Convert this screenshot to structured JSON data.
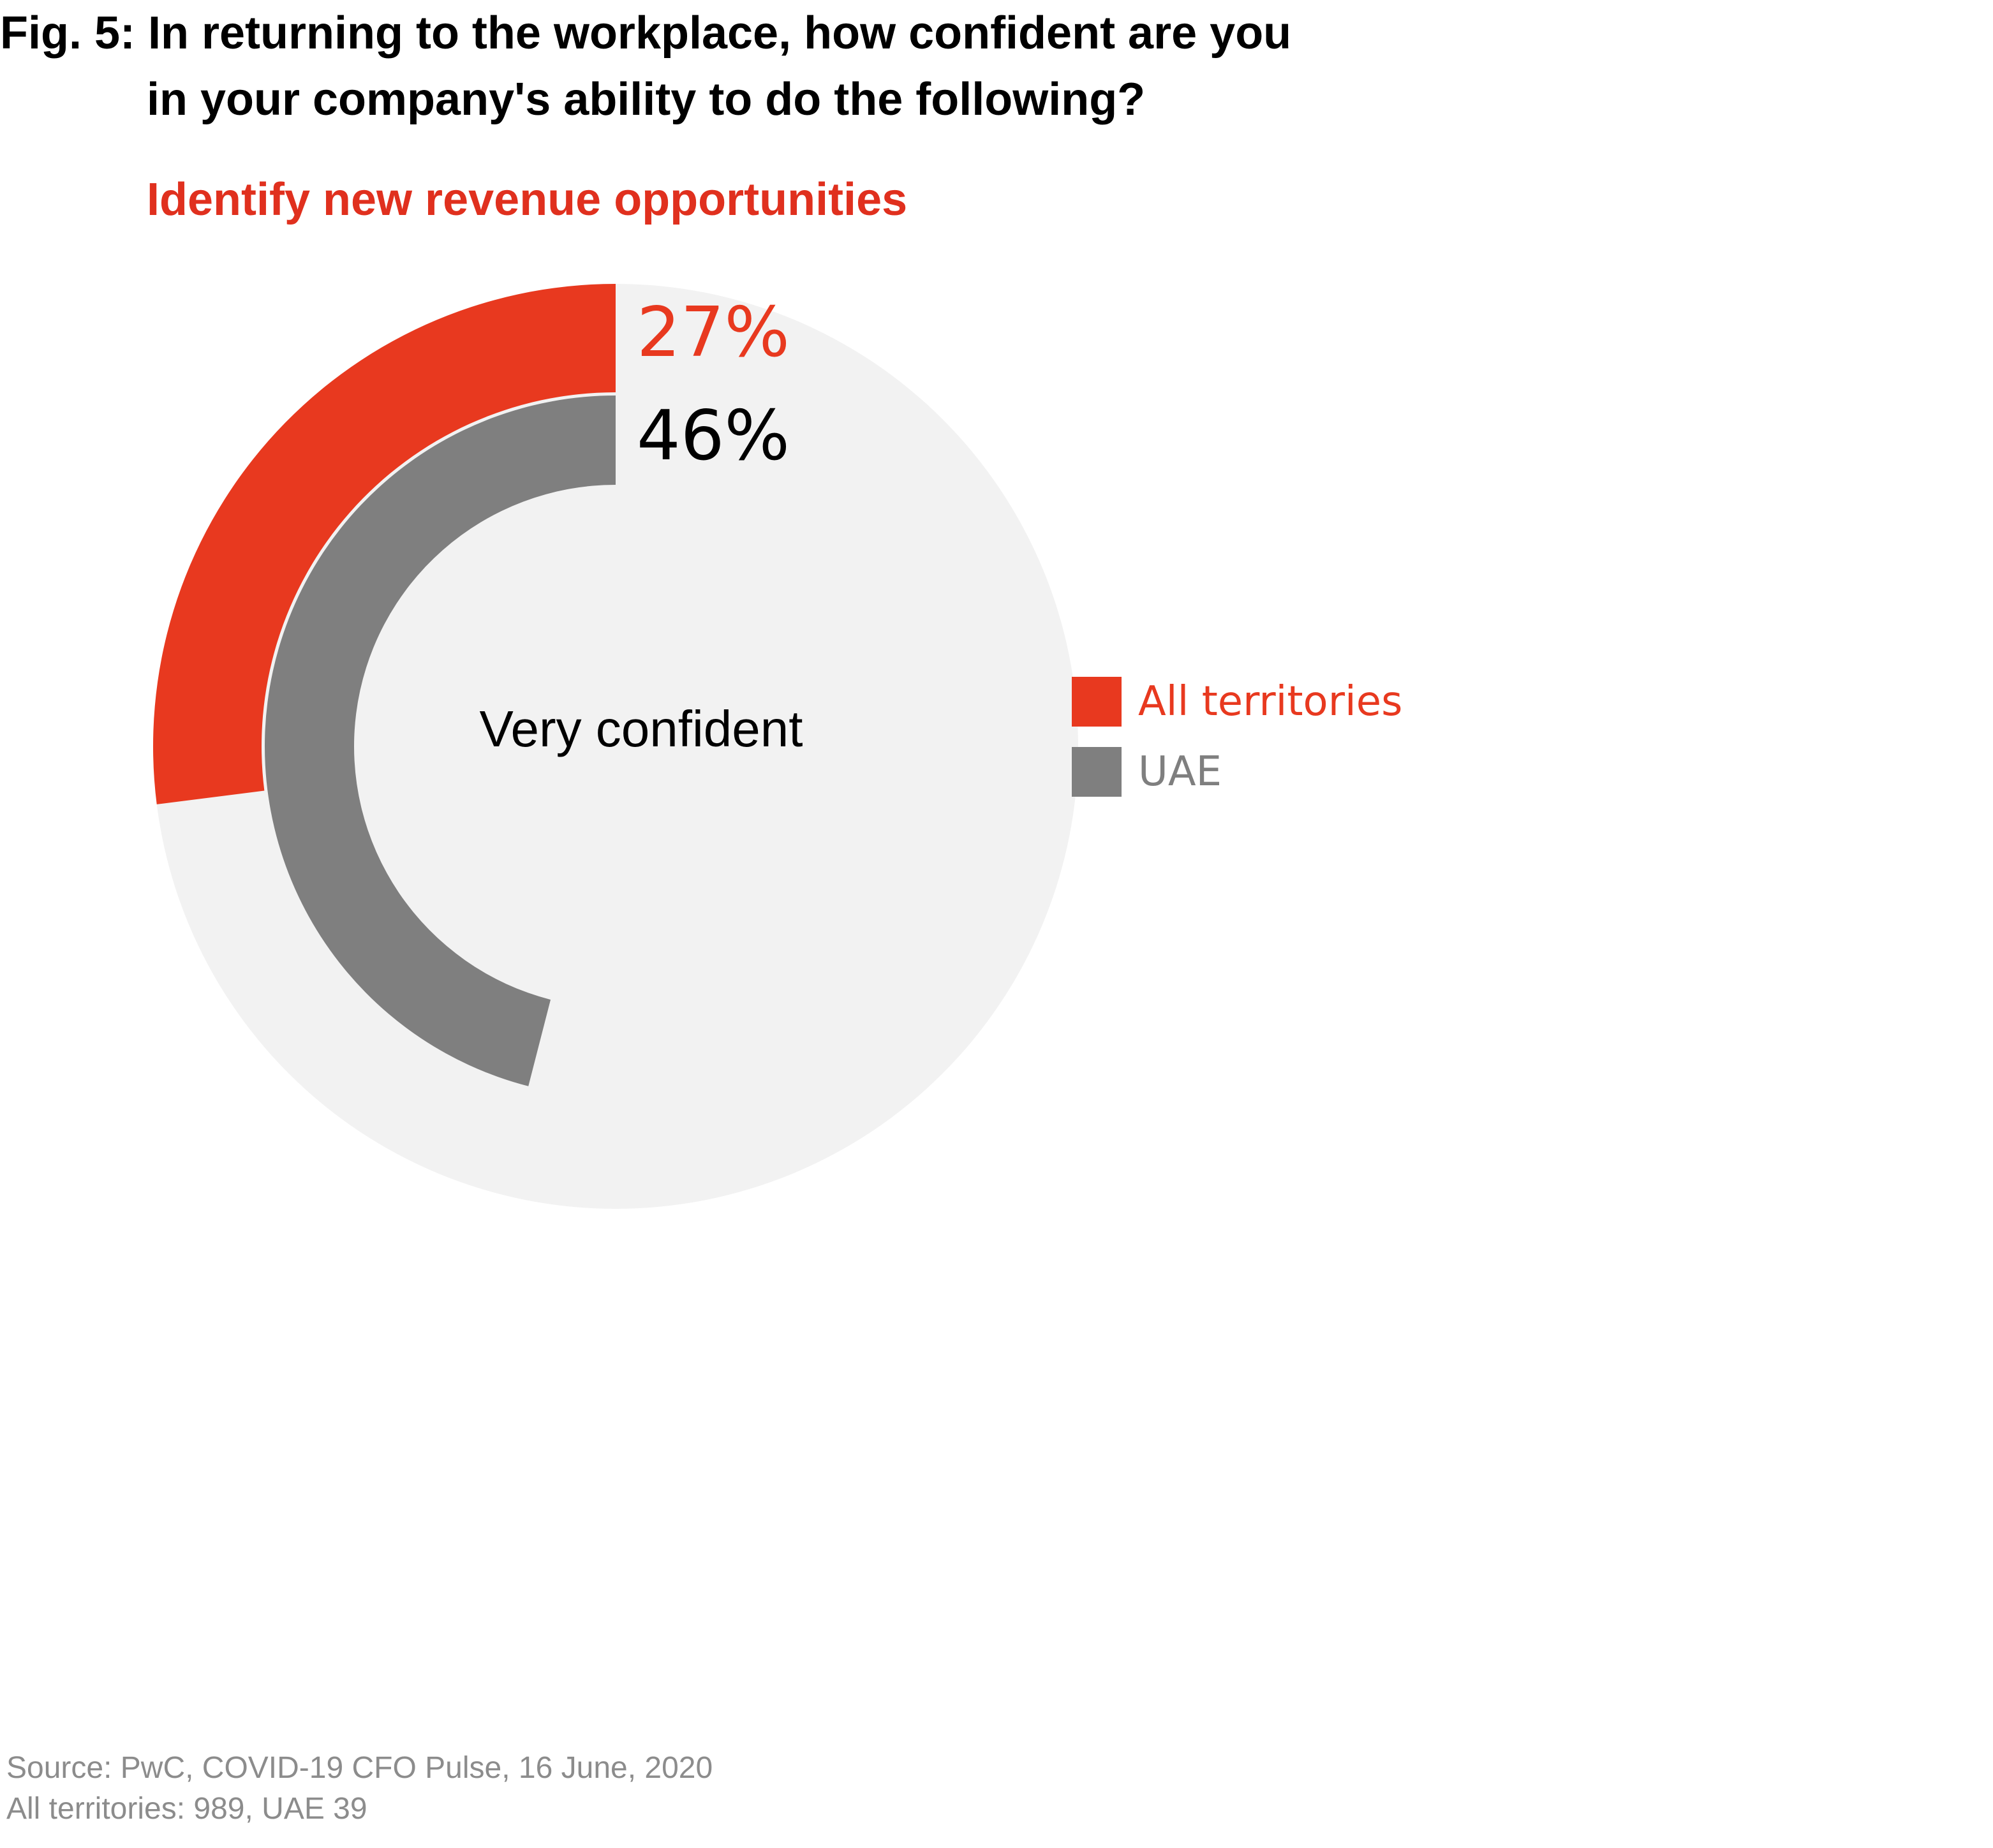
{
  "title_line1": "Fig. 5: In returning to the workplace, how confident are you",
  "title_line2": "in your company's ability to do the following?",
  "subtitle": "Identify new revenue opportunities",
  "source_line1": "Source: PwC, COVID-19 CFO Pulse, 16 June, 2020",
  "source_line2": "All territories: 989, UAE 39",
  "colors": {
    "all_territories": "#e8391f",
    "uae": "#7f7f7f",
    "background_disc": "#f2f2f2",
    "title_red": "#e0301e",
    "source_gray": "#8c8c8c"
  },
  "chart_data": {
    "type": "radial-bar",
    "title": "Identify new revenue opportunities",
    "center_label": "Very confident",
    "legend_placement": "right",
    "series": [
      {
        "name": "All territories",
        "value": 27,
        "label": "27%",
        "color": "#e8391f"
      },
      {
        "name": "UAE",
        "value": 46,
        "label": "46%",
        "color": "#7f7f7f"
      }
    ],
    "range": [
      0,
      100
    ]
  }
}
